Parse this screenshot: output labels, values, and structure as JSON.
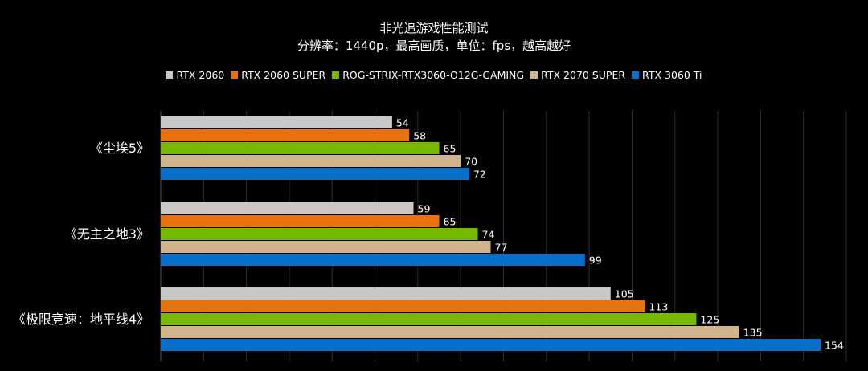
{
  "chart_data": {
    "type": "bar",
    "orientation": "horizontal",
    "title": "非光追游戏性能测试",
    "subtitle": "分辨率：1440p，最高画质，单位：fps，越高越好",
    "categories": [
      "《尘埃5》",
      "《无主之地3》",
      "《极限竞速：地平线4》"
    ],
    "series": [
      {
        "name": "RTX 2060",
        "color": "#c8c8c8",
        "values": [
          54,
          59,
          105
        ]
      },
      {
        "name": "RTX 2060 SUPER",
        "color": "#e8720c",
        "values": [
          58,
          65,
          113
        ]
      },
      {
        "name": "ROG-STRIX-RTX3060-O12G-GAMING",
        "color": "#76b900",
        "values": [
          65,
          74,
          125
        ]
      },
      {
        "name": "RTX 2070 SUPER",
        "color": "#d2b48c",
        "values": [
          70,
          77,
          135
        ]
      },
      {
        "name": "RTX 3060 Ti",
        "color": "#0a6fc8",
        "values": [
          72,
          99,
          154
        ]
      }
    ],
    "xlim": [
      0,
      160
    ],
    "grid": true,
    "legend_position": "top-center"
  }
}
